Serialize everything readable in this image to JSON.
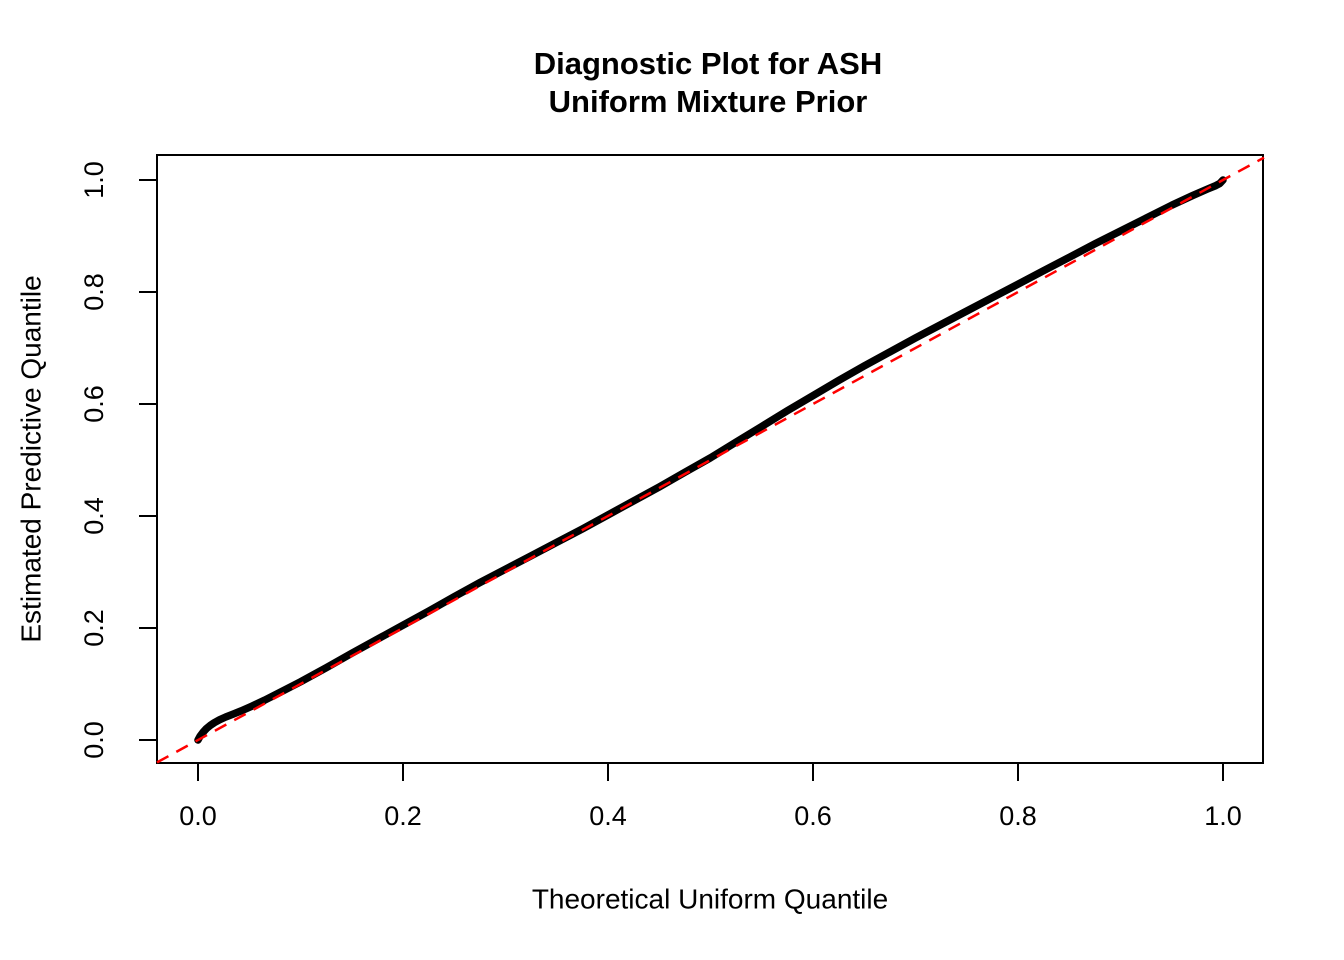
{
  "title": {
    "line1": "Diagnostic Plot for ASH",
    "line2": "Uniform Mixture Prior"
  },
  "axes": {
    "x_label": "Theoretical Uniform Quantile",
    "y_label": "Estimated Predictive Quantile",
    "x_ticks": [
      "0.0",
      "0.2",
      "0.4",
      "0.6",
      "0.8",
      "1.0"
    ],
    "y_ticks": [
      "0.0",
      "0.2",
      "0.4",
      "0.6",
      "0.8",
      "1.0"
    ]
  },
  "colors": {
    "background": "#FFFFFF",
    "curve": "#000000",
    "reference_line": "#FF0000",
    "axis": "#000000"
  },
  "chart_data": {
    "type": "line",
    "title": "Diagnostic Plot for ASH\nUniform Mixture Prior",
    "xlabel": "Theoretical Uniform Quantile",
    "ylabel": "Estimated Predictive Quantile",
    "xlim": [
      -0.04,
      1.04
    ],
    "ylim": [
      -0.04,
      1.04
    ],
    "x_tick_values": [
      0.0,
      0.2,
      0.4,
      0.6,
      0.8,
      1.0
    ],
    "y_tick_values": [
      0.0,
      0.2,
      0.4,
      0.6,
      0.8,
      1.0
    ],
    "grid": false,
    "legend": false,
    "series": [
      {
        "name": "estimated-vs-theoretical-quantile-curve",
        "type": "line",
        "style": "solid",
        "color": "#000000",
        "points": [
          [
            0.0,
            0.0
          ],
          [
            0.002,
            0.007
          ],
          [
            0.005,
            0.014
          ],
          [
            0.008,
            0.02
          ],
          [
            0.012,
            0.026
          ],
          [
            0.016,
            0.031
          ],
          [
            0.021,
            0.036
          ],
          [
            0.027,
            0.041
          ],
          [
            0.034,
            0.046
          ],
          [
            0.042,
            0.052
          ],
          [
            0.052,
            0.06
          ],
          [
            0.065,
            0.071
          ],
          [
            0.08,
            0.085
          ],
          [
            0.1,
            0.104
          ],
          [
            0.125,
            0.129
          ],
          [
            0.15,
            0.155
          ],
          [
            0.175,
            0.18
          ],
          [
            0.2,
            0.205
          ],
          [
            0.225,
            0.23
          ],
          [
            0.25,
            0.256
          ],
          [
            0.275,
            0.281
          ],
          [
            0.3,
            0.305
          ],
          [
            0.325,
            0.329
          ],
          [
            0.35,
            0.353
          ],
          [
            0.375,
            0.377
          ],
          [
            0.4,
            0.402
          ],
          [
            0.425,
            0.427
          ],
          [
            0.45,
            0.452
          ],
          [
            0.475,
            0.478
          ],
          [
            0.5,
            0.504
          ],
          [
            0.525,
            0.532
          ],
          [
            0.55,
            0.56
          ],
          [
            0.575,
            0.588
          ],
          [
            0.6,
            0.615
          ],
          [
            0.625,
            0.642
          ],
          [
            0.65,
            0.668
          ],
          [
            0.675,
            0.693
          ],
          [
            0.7,
            0.718
          ],
          [
            0.725,
            0.742
          ],
          [
            0.75,
            0.766
          ],
          [
            0.775,
            0.79
          ],
          [
            0.8,
            0.814
          ],
          [
            0.825,
            0.838
          ],
          [
            0.85,
            0.862
          ],
          [
            0.875,
            0.886
          ],
          [
            0.9,
            0.909
          ],
          [
            0.925,
            0.932
          ],
          [
            0.95,
            0.955
          ],
          [
            0.97,
            0.972
          ],
          [
            0.985,
            0.984
          ],
          [
            0.993,
            0.99
          ],
          [
            0.997,
            0.994
          ],
          [
            1.0,
            1.0
          ]
        ]
      },
      {
        "name": "reference-identity-line",
        "type": "line",
        "style": "dashed",
        "color": "#FF0000",
        "points": [
          [
            -0.04,
            -0.04
          ],
          [
            1.04,
            1.04
          ]
        ]
      }
    ]
  }
}
